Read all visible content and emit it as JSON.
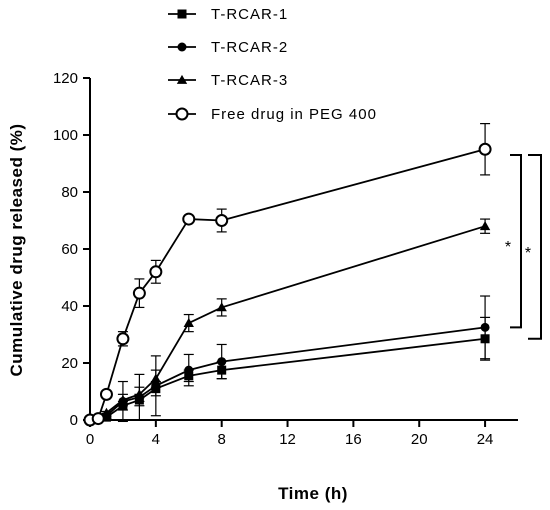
{
  "chart_data": {
    "type": "line",
    "title": "",
    "xlabel": "Time (h)",
    "ylabel": "Cumulative drug released (%)",
    "xlim": [
      0,
      26
    ],
    "ylim": [
      0,
      120
    ],
    "x_ticks": [
      0,
      4,
      8,
      12,
      16,
      20,
      24
    ],
    "y_ticks": [
      0,
      20,
      40,
      60,
      80,
      100,
      120
    ],
    "grid": false,
    "legend_position": "top",
    "series": [
      {
        "name": "T-RCAR-1",
        "marker": "square",
        "x": [
          0,
          0.5,
          1,
          2,
          3,
          4,
          6,
          8,
          24
        ],
        "y": [
          0,
          0.5,
          1,
          5,
          7,
          11,
          15.5,
          17.5,
          28.5
        ],
        "error": [
          0,
          0,
          0.5,
          1.5,
          2,
          2.5,
          2,
          3,
          7.5
        ]
      },
      {
        "name": "T-RCAR-2",
        "marker": "circle",
        "x": [
          0,
          0.5,
          1,
          2,
          3,
          4,
          6,
          8,
          24
        ],
        "y": [
          0,
          0.5,
          1.5,
          6.5,
          8,
          12,
          17.5,
          20.5,
          32.5
        ],
        "error": [
          0,
          0,
          0.5,
          7,
          8,
          10.5,
          5.5,
          6,
          11
        ]
      },
      {
        "name": "T-RCAR-3",
        "marker": "triangle",
        "x": [
          0,
          0.5,
          1,
          2,
          3,
          4,
          6,
          8,
          24
        ],
        "y": [
          0,
          0.5,
          2.5,
          7,
          9,
          14.5,
          34,
          39.5,
          68
        ],
        "error": [
          0,
          0,
          0.5,
          2,
          2.5,
          3,
          3,
          3,
          2.5
        ]
      },
      {
        "name": "Free drug in PEG 400",
        "marker": "open-circle",
        "x": [
          0,
          0.5,
          1,
          2,
          3,
          4,
          6,
          8,
          24
        ],
        "y": [
          0,
          0.5,
          9,
          28.5,
          44.5,
          52,
          70.5,
          70,
          95
        ],
        "error": [
          0,
          0,
          1,
          2.5,
          5,
          4,
          1,
          4,
          9
        ]
      }
    ],
    "annotations": [
      {
        "text": "*",
        "note": "bracket between Free drug in PEG 400 and T-RCAR-2 at 24 h"
      },
      {
        "text": "*",
        "note": "bracket between Free drug in PEG 400 and T-RCAR-1 at 24 h"
      }
    ]
  }
}
